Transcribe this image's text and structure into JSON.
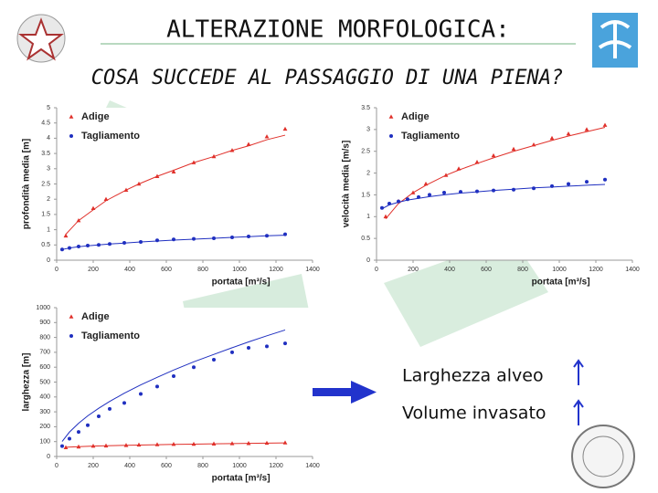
{
  "slide": {
    "title": "ALTERAZIONE MORFOLOGICA:",
    "subtitle": "COSA SUCCEDE AL PASSAGGIO DI UNA PIENA?",
    "notes": [
      "Larghezza alveo",
      "Volume invasato"
    ]
  },
  "chart_data": [
    {
      "type": "scatter",
      "xlabel": "portata [m³/s]",
      "ylabel": "profondità media [m]",
      "xlim": [
        0,
        1400
      ],
      "xticks": [
        0,
        200,
        400,
        600,
        800,
        1000,
        1200,
        1400
      ],
      "ylim": [
        0,
        5
      ],
      "yticks": [
        0,
        0.5,
        1,
        1.5,
        2,
        2.5,
        3,
        3.5,
        4,
        4.5,
        5
      ],
      "series": [
        {
          "name": "Adige",
          "color": "#e0302a",
          "marker": "triangle",
          "x": [
            50,
            120,
            200,
            270,
            380,
            450,
            550,
            640,
            750,
            860,
            960,
            1050,
            1150,
            1250
          ],
          "values": [
            0.8,
            1.3,
            1.7,
            2.0,
            2.3,
            2.5,
            2.75,
            2.9,
            3.2,
            3.4,
            3.6,
            3.8,
            4.05,
            4.3
          ],
          "fit": [
            0.85,
            1.3,
            1.65,
            1.95,
            2.3,
            2.5,
            2.75,
            2.95,
            3.2,
            3.4,
            3.6,
            3.75,
            3.95,
            4.1
          ]
        },
        {
          "name": "Tagliamento",
          "color": "#1f2fc0",
          "marker": "circle",
          "x": [
            30,
            70,
            120,
            170,
            230,
            290,
            370,
            460,
            550,
            640,
            750,
            860,
            960,
            1050,
            1150,
            1250
          ],
          "values": [
            0.35,
            0.4,
            0.45,
            0.48,
            0.5,
            0.53,
            0.57,
            0.6,
            0.65,
            0.68,
            0.7,
            0.72,
            0.75,
            0.78,
            0.8,
            0.85
          ],
          "fit": [
            0.35,
            0.4,
            0.44,
            0.47,
            0.5,
            0.53,
            0.56,
            0.6,
            0.63,
            0.66,
            0.69,
            0.72,
            0.75,
            0.77,
            0.8,
            0.82
          ]
        }
      ]
    },
    {
      "type": "scatter",
      "xlabel": "portata [m³/s]",
      "ylabel": "velocità media [m/s]",
      "xlim": [
        0,
        1400
      ],
      "xticks": [
        0,
        200,
        400,
        600,
        800,
        1000,
        1200,
        1400
      ],
      "ylim": [
        0,
        3.5
      ],
      "yticks": [
        0,
        0.5,
        1,
        1.5,
        2,
        2.5,
        3,
        3.5
      ],
      "series": [
        {
          "name": "Adige",
          "color": "#e0302a",
          "marker": "triangle",
          "x": [
            50,
            120,
            200,
            270,
            380,
            450,
            550,
            640,
            750,
            860,
            960,
            1050,
            1150,
            1250
          ],
          "values": [
            1.0,
            1.35,
            1.55,
            1.75,
            1.95,
            2.1,
            2.25,
            2.4,
            2.55,
            2.65,
            2.8,
            2.9,
            3.0,
            3.1
          ],
          "fit": [
            0.95,
            1.3,
            1.55,
            1.72,
            1.95,
            2.07,
            2.22,
            2.35,
            2.5,
            2.63,
            2.75,
            2.85,
            2.95,
            3.05
          ]
        },
        {
          "name": "Tagliamento",
          "color": "#1f2fc0",
          "marker": "circle",
          "x": [
            30,
            70,
            120,
            170,
            230,
            290,
            370,
            460,
            550,
            640,
            750,
            860,
            960,
            1050,
            1150,
            1250
          ],
          "values": [
            1.2,
            1.3,
            1.35,
            1.4,
            1.45,
            1.5,
            1.55,
            1.57,
            1.58,
            1.6,
            1.62,
            1.65,
            1.7,
            1.75,
            1.8,
            1.85
          ],
          "fit": [
            1.18,
            1.27,
            1.33,
            1.38,
            1.42,
            1.46,
            1.5,
            1.54,
            1.57,
            1.6,
            1.63,
            1.66,
            1.68,
            1.7,
            1.72,
            1.74
          ]
        }
      ]
    },
    {
      "type": "scatter",
      "xlabel": "portata [m³/s]",
      "ylabel": "larghezza [m]",
      "xlim": [
        0,
        1400
      ],
      "xticks": [
        0,
        200,
        400,
        600,
        800,
        1000,
        1200,
        1400
      ],
      "ylim": [
        0,
        1000
      ],
      "yticks": [
        0,
        100,
        200,
        300,
        400,
        500,
        600,
        700,
        800,
        900,
        1000
      ],
      "series": [
        {
          "name": "Adige",
          "color": "#e0302a",
          "marker": "triangle",
          "x": [
            50,
            120,
            200,
            270,
            380,
            450,
            550,
            640,
            750,
            860,
            960,
            1050,
            1150,
            1250
          ],
          "values": [
            60,
            65,
            70,
            72,
            75,
            78,
            80,
            82,
            83,
            85,
            87,
            88,
            90,
            92
          ],
          "fit": [
            62,
            66,
            70,
            72,
            75,
            77,
            79,
            81,
            83,
            85,
            87,
            88,
            90,
            91
          ]
        },
        {
          "name": "Tagliamento",
          "color": "#1f2fc0",
          "marker": "circle",
          "x": [
            30,
            70,
            120,
            170,
            230,
            290,
            370,
            460,
            550,
            640,
            750,
            860,
            960,
            1050,
            1150,
            1250
          ],
          "values": [
            70,
            120,
            165,
            210,
            270,
            320,
            360,
            420,
            470,
            540,
            600,
            650,
            700,
            730,
            740,
            760
          ],
          "fit": [
            101,
            164,
            223,
            273,
            324,
            370,
            425,
            481,
            532,
            581,
            636,
            686,
            731,
            770,
            811,
            850
          ]
        }
      ]
    }
  ]
}
